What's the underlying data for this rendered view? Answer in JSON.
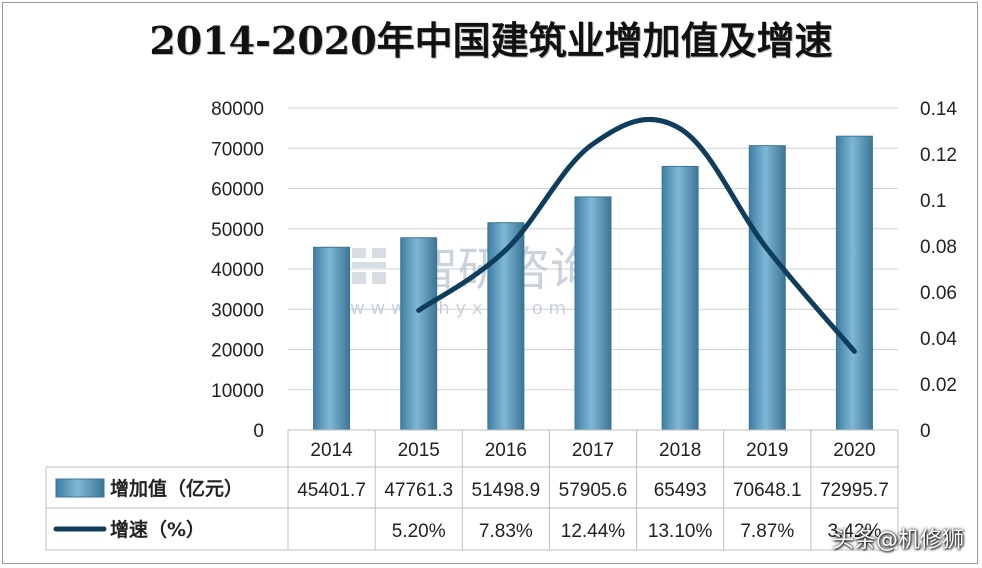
{
  "title": "2014-2020年中国建筑业增加值及增速",
  "credit": "头条@机修狮",
  "watermark": {
    "cn": "智研咨询",
    "url": "w w w . c h y x x . c o m"
  },
  "colors": {
    "bar": "#5b9bbd",
    "bar_dark": "#3c7596",
    "line": "#0f3d5c",
    "grid": "#d0d0d0",
    "table_border": "#bfbfbf"
  },
  "chart_data": {
    "type": "bar",
    "title": "2014-2020年中国建筑业增加值及增速",
    "categories": [
      "2014",
      "2015",
      "2016",
      "2017",
      "2018",
      "2019",
      "2020"
    ],
    "series": [
      {
        "name": "增加值（亿元）",
        "type": "bar",
        "axis": "left",
        "values": [
          45401.7,
          47761.3,
          51498.9,
          57905.6,
          65493,
          70648.1,
          72995.7
        ],
        "labels": [
          "45401.7",
          "47761.3",
          "51498.9",
          "57905.6",
          "65493",
          "70648.1",
          "72995.7"
        ]
      },
      {
        "name": "增速（%）",
        "type": "line",
        "axis": "right",
        "values": [
          null,
          0.052,
          0.0783,
          0.1244,
          0.131,
          0.0787,
          0.0342
        ],
        "labels": [
          "",
          "5.20%",
          "7.83%",
          "12.44%",
          "13.10%",
          "7.87%",
          "3.42%"
        ]
      }
    ],
    "y_left": {
      "range": [
        0,
        80000
      ],
      "ticks": [
        "0",
        "10000",
        "20000",
        "30000",
        "40000",
        "50000",
        "60000",
        "70000",
        "80000"
      ]
    },
    "y_right": {
      "range": [
        0,
        0.14
      ],
      "ticks": [
        "0",
        "0.02",
        "0.04",
        "0.06",
        "0.08",
        "0.1",
        "0.12",
        "0.14"
      ]
    },
    "grid": true,
    "legend": "data-table"
  }
}
